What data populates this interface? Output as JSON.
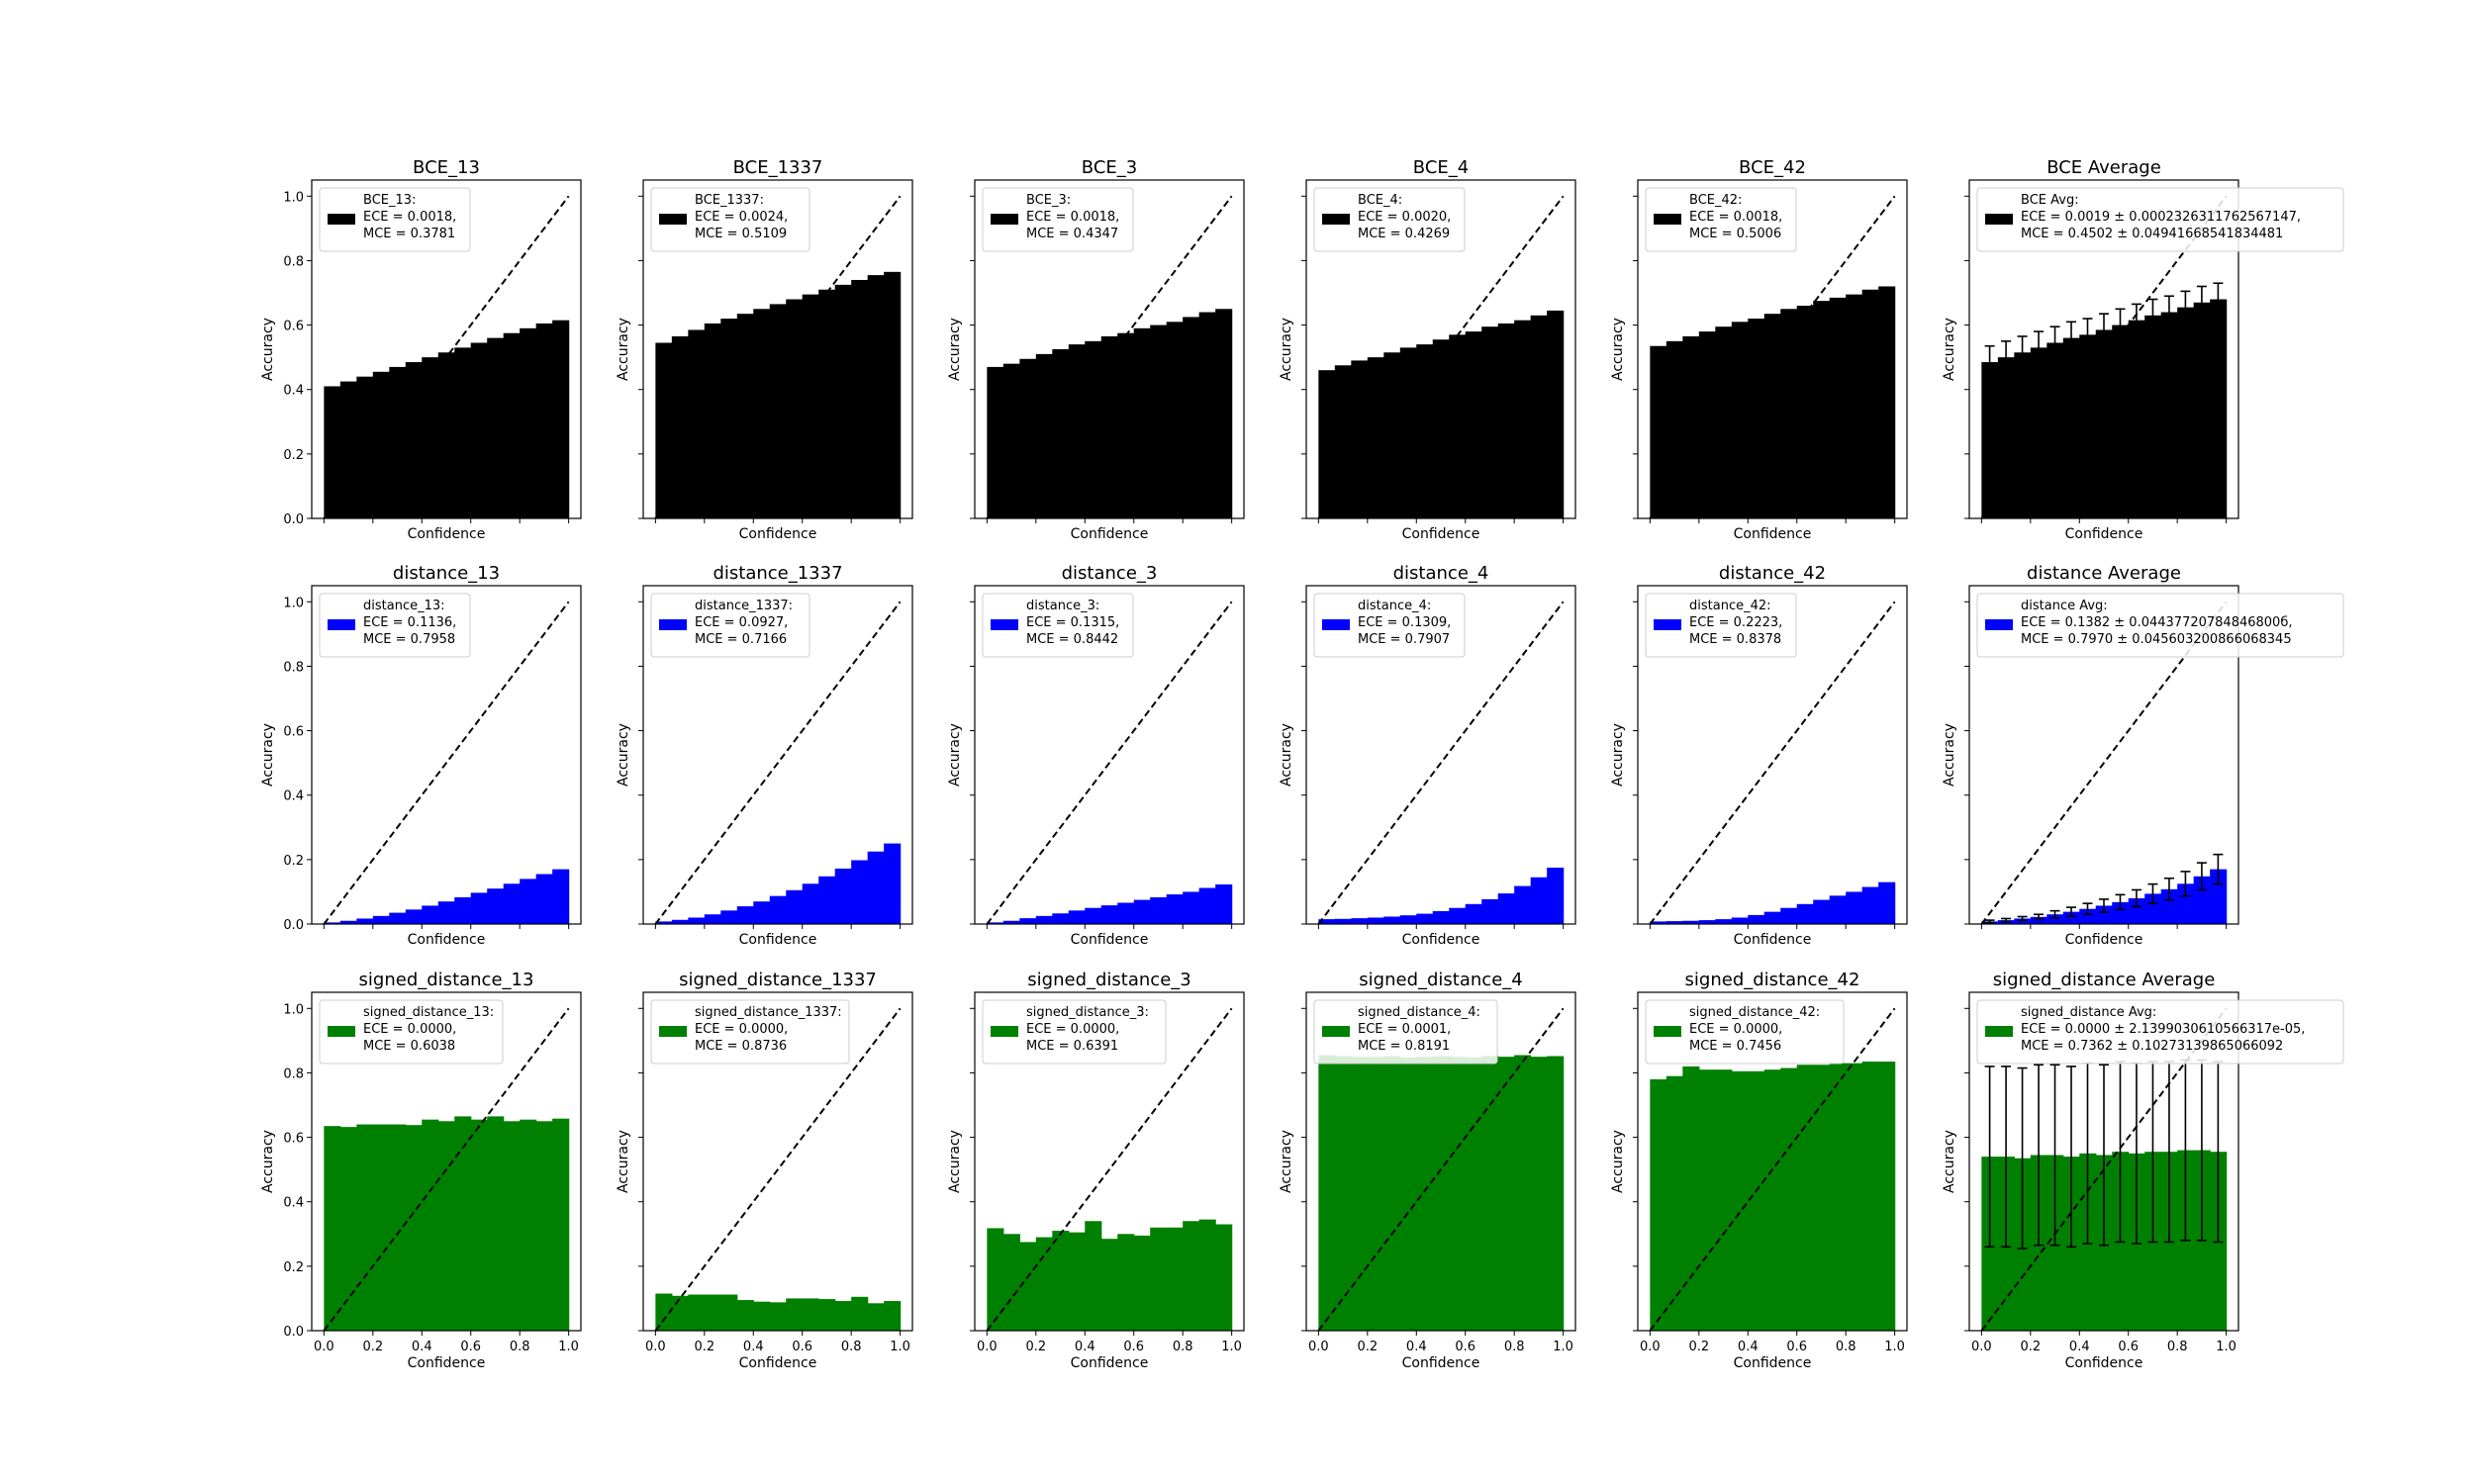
{
  "chart_data": [
    {
      "type": "bar",
      "title": "BCE_13",
      "xlabel": "",
      "ylabel": "Accuracy",
      "color": "#000000",
      "legend": [
        "BCE_13:",
        "ECE = 0.0018,",
        "MCE = 0.3781"
      ],
      "x": [
        0.0333,
        0.1,
        0.1667,
        0.2333,
        0.3,
        0.3667,
        0.4333,
        0.5,
        0.5667,
        0.6333,
        0.7,
        0.7667,
        0.8333,
        0.9,
        0.9667
      ],
      "values": [
        0.41,
        0.425,
        0.44,
        0.455,
        0.47,
        0.485,
        0.5,
        0.515,
        0.53,
        0.545,
        0.56,
        0.575,
        0.59,
        0.605,
        0.615
      ],
      "xlim": [
        -0.05,
        1.05
      ],
      "ylim": [
        0,
        1.05
      ]
    },
    {
      "type": "bar",
      "title": "BCE_1337",
      "xlabel": "",
      "ylabel": "Accuracy",
      "color": "#000000",
      "legend": [
        "BCE_1337:",
        "ECE = 0.0024,",
        "MCE = 0.5109"
      ],
      "x": [
        0.0333,
        0.1,
        0.1667,
        0.2333,
        0.3,
        0.3667,
        0.4333,
        0.5,
        0.5667,
        0.6333,
        0.7,
        0.7667,
        0.8333,
        0.9,
        0.9667
      ],
      "values": [
        0.545,
        0.565,
        0.585,
        0.605,
        0.62,
        0.635,
        0.65,
        0.665,
        0.68,
        0.695,
        0.71,
        0.725,
        0.74,
        0.755,
        0.765
      ],
      "xlim": [
        -0.05,
        1.05
      ],
      "ylim": [
        0,
        1.05
      ]
    },
    {
      "type": "bar",
      "title": "BCE_3",
      "xlabel": "",
      "ylabel": "Accuracy",
      "color": "#000000",
      "legend": [
        "BCE_3:",
        "ECE = 0.0018,",
        "MCE = 0.4347"
      ],
      "x": [
        0.0333,
        0.1,
        0.1667,
        0.2333,
        0.3,
        0.3667,
        0.4333,
        0.5,
        0.5667,
        0.6333,
        0.7,
        0.7667,
        0.8333,
        0.9,
        0.9667
      ],
      "values": [
        0.47,
        0.48,
        0.495,
        0.51,
        0.525,
        0.54,
        0.55,
        0.565,
        0.575,
        0.59,
        0.6,
        0.61,
        0.625,
        0.64,
        0.65
      ],
      "xlim": [
        -0.05,
        1.05
      ],
      "ylim": [
        0,
        1.05
      ]
    },
    {
      "type": "bar",
      "title": "BCE_4",
      "xlabel": "",
      "ylabel": "Accuracy",
      "color": "#000000",
      "legend": [
        "BCE_4:",
        "ECE = 0.0020,",
        "MCE = 0.4269"
      ],
      "x": [
        0.0333,
        0.1,
        0.1667,
        0.2333,
        0.3,
        0.3667,
        0.4333,
        0.5,
        0.5667,
        0.6333,
        0.7,
        0.7667,
        0.8333,
        0.9,
        0.9667
      ],
      "values": [
        0.46,
        0.475,
        0.49,
        0.5,
        0.515,
        0.53,
        0.54,
        0.555,
        0.57,
        0.58,
        0.595,
        0.605,
        0.615,
        0.63,
        0.645
      ],
      "xlim": [
        -0.05,
        1.05
      ],
      "ylim": [
        0,
        1.05
      ]
    },
    {
      "type": "bar",
      "title": "BCE_42",
      "xlabel": "",
      "ylabel": "Accuracy",
      "color": "#000000",
      "legend": [
        "BCE_42:",
        "ECE = 0.0018,",
        "MCE = 0.5006"
      ],
      "x": [
        0.0333,
        0.1,
        0.1667,
        0.2333,
        0.3,
        0.3667,
        0.4333,
        0.5,
        0.5667,
        0.6333,
        0.7,
        0.7667,
        0.8333,
        0.9,
        0.9667
      ],
      "values": [
        0.535,
        0.55,
        0.565,
        0.58,
        0.595,
        0.61,
        0.62,
        0.635,
        0.65,
        0.66,
        0.675,
        0.685,
        0.695,
        0.71,
        0.72
      ],
      "xlim": [
        -0.05,
        1.05
      ],
      "ylim": [
        0,
        1.05
      ]
    },
    {
      "type": "bar",
      "title": "BCE Average",
      "xlabel": "",
      "ylabel": "Accuracy",
      "color": "#000000",
      "legend": [
        "BCE Avg:",
        "ECE = 0.0019 ± 0.0002326311762567147,",
        "MCE = 0.4502 ± 0.04941668541834481"
      ],
      "x": [
        0.0333,
        0.1,
        0.1667,
        0.2333,
        0.3,
        0.3667,
        0.4333,
        0.5,
        0.5667,
        0.6333,
        0.7,
        0.7667,
        0.8333,
        0.9,
        0.9667
      ],
      "values": [
        0.485,
        0.5,
        0.515,
        0.53,
        0.545,
        0.56,
        0.57,
        0.585,
        0.6,
        0.615,
        0.63,
        0.64,
        0.655,
        0.67,
        0.68
      ],
      "errors": [
        0.05,
        0.05,
        0.05,
        0.05,
        0.05,
        0.05,
        0.05,
        0.05,
        0.05,
        0.05,
        0.05,
        0.05,
        0.05,
        0.05,
        0.05
      ],
      "xlim": [
        -0.05,
        1.05
      ],
      "ylim": [
        0,
        1.05
      ]
    },
    {
      "type": "bar",
      "title": "distance_13",
      "xlabel": "",
      "ylabel": "Accuracy",
      "color": "#0000ff",
      "legend": [
        "distance_13:",
        "ECE = 0.1136,",
        "MCE = 0.7958"
      ],
      "x": [
        0.0333,
        0.1,
        0.1667,
        0.2333,
        0.3,
        0.3667,
        0.4333,
        0.5,
        0.5667,
        0.6333,
        0.7,
        0.7667,
        0.8333,
        0.9,
        0.9667
      ],
      "values": [
        0.005,
        0.01,
        0.017,
        0.025,
        0.035,
        0.045,
        0.057,
        0.07,
        0.083,
        0.097,
        0.11,
        0.125,
        0.14,
        0.155,
        0.17
      ],
      "xlim": [
        -0.05,
        1.05
      ],
      "ylim": [
        0,
        1.05
      ]
    },
    {
      "type": "bar",
      "title": "distance_1337",
      "xlabel": "",
      "ylabel": "Accuracy",
      "color": "#0000ff",
      "legend": [
        "distance_1337:",
        "ECE = 0.0927,",
        "MCE = 0.7166"
      ],
      "x": [
        0.0333,
        0.1,
        0.1667,
        0.2333,
        0.3,
        0.3667,
        0.4333,
        0.5,
        0.5667,
        0.6333,
        0.7,
        0.7667,
        0.8333,
        0.9,
        0.9667
      ],
      "values": [
        0.008,
        0.013,
        0.02,
        0.03,
        0.042,
        0.055,
        0.07,
        0.087,
        0.105,
        0.125,
        0.148,
        0.172,
        0.198,
        0.225,
        0.25
      ],
      "xlim": [
        -0.05,
        1.05
      ],
      "ylim": [
        0,
        1.05
      ]
    },
    {
      "type": "bar",
      "title": "distance_3",
      "xlabel": "",
      "ylabel": "Accuracy",
      "color": "#0000ff",
      "legend": [
        "distance_3:",
        "ECE = 0.1315,",
        "MCE = 0.8442"
      ],
      "x": [
        0.0333,
        0.1,
        0.1667,
        0.2333,
        0.3,
        0.3667,
        0.4333,
        0.5,
        0.5667,
        0.6333,
        0.7,
        0.7667,
        0.8333,
        0.9,
        0.9667
      ],
      "values": [
        0.005,
        0.01,
        0.018,
        0.025,
        0.033,
        0.042,
        0.05,
        0.058,
        0.066,
        0.075,
        0.083,
        0.092,
        0.1,
        0.112,
        0.123
      ],
      "xlim": [
        -0.05,
        1.05
      ],
      "ylim": [
        0,
        1.05
      ]
    },
    {
      "type": "bar",
      "title": "distance_4",
      "xlabel": "",
      "ylabel": "Accuracy",
      "color": "#0000ff",
      "legend": [
        "distance_4:",
        "ECE = 0.1309,",
        "MCE = 0.7907"
      ],
      "x": [
        0.0333,
        0.1,
        0.1667,
        0.2333,
        0.3,
        0.3667,
        0.4333,
        0.5,
        0.5667,
        0.6333,
        0.7,
        0.7667,
        0.8333,
        0.9,
        0.9667
      ],
      "values": [
        0.015,
        0.016,
        0.018,
        0.02,
        0.023,
        0.027,
        0.032,
        0.04,
        0.05,
        0.062,
        0.077,
        0.095,
        0.118,
        0.145,
        0.175
      ],
      "xlim": [
        -0.05,
        1.05
      ],
      "ylim": [
        0,
        1.05
      ]
    },
    {
      "type": "bar",
      "title": "distance_42",
      "xlabel": "",
      "ylabel": "Accuracy",
      "color": "#0000ff",
      "legend": [
        "distance_42:",
        "ECE = 0.2223,",
        "MCE = 0.8378"
      ],
      "x": [
        0.0333,
        0.1,
        0.1667,
        0.2333,
        0.3,
        0.3667,
        0.4333,
        0.5,
        0.5667,
        0.6333,
        0.7,
        0.7667,
        0.8333,
        0.9,
        0.9667
      ],
      "values": [
        0.008,
        0.009,
        0.01,
        0.012,
        0.015,
        0.02,
        0.028,
        0.038,
        0.05,
        0.062,
        0.075,
        0.088,
        0.1,
        0.115,
        0.13
      ],
      "xlim": [
        -0.05,
        1.05
      ],
      "ylim": [
        0,
        1.05
      ]
    },
    {
      "type": "bar",
      "title": "distance Average",
      "xlabel": "",
      "ylabel": "Accuracy",
      "color": "#0000ff",
      "legend": [
        "distance Avg:",
        "ECE = 0.1382 ± 0.04437720784846800б,",
        "MCE = 0.7970 ± 0.045603200866068345"
      ],
      "x": [
        0.0333,
        0.1,
        0.1667,
        0.2333,
        0.3,
        0.3667,
        0.4333,
        0.5,
        0.5667,
        0.6333,
        0.7,
        0.7667,
        0.8333,
        0.9,
        0.9667
      ],
      "values": [
        0.008,
        0.012,
        0.017,
        0.022,
        0.03,
        0.038,
        0.047,
        0.057,
        0.068,
        0.08,
        0.094,
        0.108,
        0.125,
        0.148,
        0.17
      ],
      "errors": [
        0.004,
        0.005,
        0.006,
        0.008,
        0.011,
        0.014,
        0.017,
        0.02,
        0.023,
        0.026,
        0.03,
        0.034,
        0.038,
        0.042,
        0.046
      ],
      "xlim": [
        -0.05,
        1.05
      ],
      "ylim": [
        0,
        1.05
      ]
    },
    {
      "type": "bar",
      "title": "signed_distance_13",
      "xlabel": "Confidence",
      "ylabel": "Accuracy",
      "color": "#008000",
      "legend": [
        "signed_distance_13:",
        "ECE = 0.0000,",
        "MCE = 0.6038"
      ],
      "x": [
        0.0333,
        0.1,
        0.1667,
        0.2333,
        0.3,
        0.3667,
        0.4333,
        0.5,
        0.5667,
        0.6333,
        0.7,
        0.7667,
        0.8333,
        0.9,
        0.9667
      ],
      "values": [
        0.635,
        0.632,
        0.64,
        0.64,
        0.64,
        0.638,
        0.655,
        0.65,
        0.665,
        0.655,
        0.665,
        0.65,
        0.655,
        0.65,
        0.658
      ],
      "xlim": [
        -0.05,
        1.05
      ],
      "ylim": [
        0,
        1.05
      ]
    },
    {
      "type": "bar",
      "title": "signed_distance_1337",
      "xlabel": "Confidence",
      "ylabel": "Accuracy",
      "color": "#008000",
      "legend": [
        "signed_distance_1337:",
        "ECE = 0.0000,",
        "MCE = 0.8736"
      ],
      "x": [
        0.0333,
        0.1,
        0.1667,
        0.2333,
        0.3,
        0.3667,
        0.4333,
        0.5,
        0.5667,
        0.6333,
        0.7,
        0.7667,
        0.8333,
        0.9,
        0.9667
      ],
      "values": [
        0.115,
        0.108,
        0.112,
        0.112,
        0.112,
        0.095,
        0.09,
        0.088,
        0.1,
        0.1,
        0.098,
        0.092,
        0.105,
        0.085,
        0.092
      ],
      "xlim": [
        -0.05,
        1.05
      ],
      "ylim": [
        0,
        1.05
      ]
    },
    {
      "type": "bar",
      "title": "signed_distance_3",
      "xlabel": "Confidence",
      "ylabel": "Accuracy",
      "color": "#008000",
      "legend": [
        "signed_distance_3:",
        "ECE = 0.0000,",
        "MCE = 0.6391"
      ],
      "x": [
        0.0333,
        0.1,
        0.1667,
        0.2333,
        0.3,
        0.3667,
        0.4333,
        0.5,
        0.5667,
        0.6333,
        0.7,
        0.7667,
        0.8333,
        0.9,
        0.9667
      ],
      "values": [
        0.318,
        0.3,
        0.275,
        0.29,
        0.31,
        0.305,
        0.34,
        0.285,
        0.3,
        0.295,
        0.32,
        0.32,
        0.34,
        0.345,
        0.33
      ],
      "xlim": [
        -0.05,
        1.05
      ],
      "ylim": [
        0,
        1.05
      ]
    },
    {
      "type": "bar",
      "title": "signed_distance_4",
      "xlabel": "Confidence",
      "ylabel": "Accuracy",
      "color": "#008000",
      "legend": [
        "signed_distance_4:",
        "ECE = 0.0001,",
        "MCE = 0.8191"
      ],
      "x": [
        0.0333,
        0.1,
        0.1667,
        0.2333,
        0.3,
        0.3667,
        0.4333,
        0.5,
        0.5667,
        0.6333,
        0.7,
        0.7667,
        0.8333,
        0.9,
        0.9667
      ],
      "values": [
        0.855,
        0.852,
        0.85,
        0.85,
        0.852,
        0.848,
        0.85,
        0.852,
        0.85,
        0.848,
        0.852,
        0.85,
        0.855,
        0.85,
        0.852
      ],
      "xlim": [
        -0.05,
        1.05
      ],
      "ylim": [
        0,
        1.05
      ]
    },
    {
      "type": "bar",
      "title": "signed_distance_42",
      "xlabel": "Confidence",
      "ylabel": "Accuracy",
      "color": "#008000",
      "legend": [
        "signed_distance_42:",
        "ECE = 0.0000,",
        "MCE = 0.7456"
      ],
      "x": [
        0.0333,
        0.1,
        0.1667,
        0.2333,
        0.3,
        0.3667,
        0.4333,
        0.5,
        0.5667,
        0.6333,
        0.7,
        0.7667,
        0.8333,
        0.9,
        0.9667
      ],
      "values": [
        0.78,
        0.79,
        0.82,
        0.81,
        0.81,
        0.805,
        0.805,
        0.81,
        0.815,
        0.825,
        0.825,
        0.83,
        0.83,
        0.835,
        0.835
      ],
      "xlim": [
        -0.05,
        1.05
      ],
      "ylim": [
        0,
        1.05
      ]
    },
    {
      "type": "bar",
      "title": "signed_distance Average",
      "xlabel": "Confidence",
      "ylabel": "Accuracy",
      "color": "#008000",
      "legend": [
        "signed_distance Avg:",
        "ECE = 0.0000 ± 2.1399030610566317e-05,",
        "MCE = 0.7362 ± 0.10273139865066092"
      ],
      "x": [
        0.0333,
        0.1,
        0.1667,
        0.2333,
        0.3,
        0.3667,
        0.4333,
        0.5,
        0.5667,
        0.6333,
        0.7,
        0.7667,
        0.8333,
        0.9,
        0.9667
      ],
      "values": [
        0.54,
        0.54,
        0.535,
        0.545,
        0.545,
        0.54,
        0.55,
        0.545,
        0.555,
        0.55,
        0.555,
        0.555,
        0.56,
        0.56,
        0.555
      ],
      "errors": [
        0.28,
        0.28,
        0.28,
        0.28,
        0.28,
        0.28,
        0.28,
        0.28,
        0.28,
        0.28,
        0.28,
        0.28,
        0.28,
        0.28,
        0.28
      ],
      "xlim": [
        -0.05,
        1.05
      ],
      "ylim": [
        0,
        1.05
      ]
    }
  ],
  "xticks": [
    0.0,
    0.2,
    0.4,
    0.6,
    0.8,
    1.0
  ],
  "xtick_labels": [
    "0.0",
    "0.2",
    "0.4",
    "0.6",
    "0.8",
    "1.0"
  ],
  "yticks": [
    0.0,
    0.2,
    0.4,
    0.6,
    0.8,
    1.0
  ],
  "ytick_labels": [
    "0.0",
    "0.2",
    "0.4",
    "0.6",
    "0.8",
    "1.0"
  ],
  "confidence_label": "Confidence"
}
